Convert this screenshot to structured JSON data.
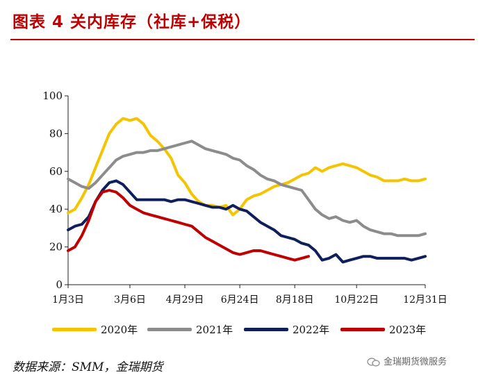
{
  "header": {
    "title": "图表 4  关内库存（社库+保税）"
  },
  "footer": {
    "source": "数据来源：SMM，金瑞期货",
    "watermark": "金瑞期货微服务",
    "watermark_icon": "wechat-icon"
  },
  "chart_data": {
    "type": "line",
    "title": "",
    "xlabel": "",
    "ylabel": "",
    "ylim": [
      0,
      100
    ],
    "yticks": [
      0,
      20,
      40,
      60,
      80,
      100
    ],
    "xticks": [
      "1月3日",
      "3月6日",
      "4月29日",
      "6月24日",
      "8月18日",
      "10月22日",
      "12月31日"
    ],
    "grid": false,
    "legend_position": "bottom",
    "series": [
      {
        "name": "2020年",
        "color": "#f5c400",
        "x": [
          "1月3日",
          "1月10日",
          "1月17日",
          "1月24日",
          "1月31日",
          "2月7日",
          "2月14日",
          "2月21日",
          "2月28日",
          "3月6日",
          "3月13日",
          "3月20日",
          "3月27日",
          "4月3日",
          "4月10日",
          "4月17日",
          "4月24日",
          "5月1日",
          "5月8日",
          "5月15日",
          "5月22日",
          "5月29日",
          "6月5日",
          "6月12日",
          "6月19日",
          "6月26日",
          "7月3日",
          "7月10日",
          "7月17日",
          "7月24日",
          "7月31日",
          "8月7日",
          "8月14日",
          "8月21日",
          "8月28日",
          "9月4日",
          "9月11日",
          "9月18日",
          "9月25日",
          "10月2日",
          "10月9日",
          "10月16日",
          "10月23日",
          "10月30日",
          "11月6日",
          "11月13日",
          "11月20日",
          "11月27日",
          "12月4日",
          "12月11日",
          "12月18日",
          "12月25日",
          "12月31日"
        ],
        "values": [
          38,
          40,
          46,
          53,
          62,
          71,
          80,
          85,
          88,
          87,
          88,
          85,
          79,
          76,
          72,
          67,
          58,
          54,
          48,
          44,
          42,
          42,
          41,
          42,
          37,
          40,
          45,
          47,
          48,
          50,
          52,
          53,
          54,
          56,
          58,
          59,
          62,
          60,
          62,
          63,
          64,
          63,
          62,
          60,
          58,
          57,
          55,
          55,
          55,
          56,
          55,
          55,
          56
        ]
      },
      {
        "name": "2021年",
        "color": "#8c8c8c",
        "x": [
          "1月3日",
          "1月10日",
          "1月17日",
          "1月24日",
          "1月31日",
          "2月7日",
          "2月14日",
          "2月21日",
          "2月28日",
          "3月6日",
          "3月13日",
          "3月20日",
          "3月27日",
          "4月3日",
          "4月10日",
          "4月17日",
          "4月24日",
          "5月1日",
          "5月8日",
          "5月15日",
          "5月22日",
          "5月29日",
          "6月5日",
          "6月12日",
          "6月19日",
          "6月26日",
          "7月3日",
          "7月10日",
          "7月17日",
          "7月24日",
          "7月31日",
          "8月7日",
          "8月14日",
          "8月21日",
          "8月28日",
          "9月4日",
          "9月11日",
          "9月18日",
          "9月25日",
          "10月2日",
          "10月9日",
          "10月16日",
          "10月23日",
          "10月30日",
          "11月6日",
          "11月13日",
          "11月20日",
          "11月27日",
          "12月4日",
          "12月11日",
          "12月18日",
          "12月25日",
          "12月31日"
        ],
        "values": [
          56,
          54,
          52,
          51,
          54,
          58,
          62,
          66,
          68,
          69,
          70,
          70,
          71,
          71,
          72,
          73,
          74,
          75,
          76,
          74,
          72,
          71,
          70,
          69,
          67,
          66,
          63,
          61,
          58,
          56,
          55,
          53,
          52,
          51,
          50,
          45,
          40,
          37,
          35,
          36,
          34,
          33,
          34,
          31,
          29,
          28,
          27,
          27,
          26,
          26,
          26,
          26,
          27
        ]
      },
      {
        "name": "2022年",
        "color": "#0f1f5c",
        "x": [
          "1月3日",
          "1月10日",
          "1月17日",
          "1月24日",
          "1月31日",
          "2月7日",
          "2月14日",
          "2月21日",
          "2月28日",
          "3月6日",
          "3月13日",
          "3月20日",
          "3月27日",
          "4月3日",
          "4月10日",
          "4月17日",
          "4月24日",
          "5月1日",
          "5月8日",
          "5月15日",
          "5月22日",
          "5月29日",
          "6月5日",
          "6月12日",
          "6月19日",
          "6月26日",
          "7月3日",
          "7月10日",
          "7月17日",
          "7月24日",
          "7月31日",
          "8月7日",
          "8月14日",
          "8月21日",
          "8月28日",
          "9月4日",
          "9月11日",
          "9月18日",
          "9月25日",
          "10月2日",
          "10月9日",
          "10月16日",
          "10月23日",
          "10月30日",
          "11月6日",
          "11月13日",
          "11月20日",
          "11月27日",
          "12月4日",
          "12月11日",
          "12月18日",
          "12月25日",
          "12月31日"
        ],
        "values": [
          29,
          31,
          32,
          36,
          44,
          50,
          54,
          55,
          53,
          49,
          45,
          45,
          45,
          45,
          45,
          44,
          45,
          45,
          44,
          43,
          42,
          41,
          41,
          40,
          42,
          40,
          39,
          36,
          33,
          31,
          29,
          26,
          25,
          24,
          22,
          21,
          18,
          13,
          14,
          16,
          12,
          13,
          14,
          15,
          15,
          14,
          14,
          14,
          14,
          14,
          13,
          14,
          15
        ]
      },
      {
        "name": "2023年",
        "color": "#c00000",
        "x": [
          "1月3日",
          "1月10日",
          "1月17日",
          "1月24日",
          "1月31日",
          "2月7日",
          "2月14日",
          "2月21日",
          "2月28日",
          "3月6日",
          "3月13日",
          "3月20日",
          "3月27日",
          "4月3日",
          "4月10日",
          "4月17日",
          "4月24日",
          "5月1日",
          "5月8日",
          "5月15日",
          "5月22日",
          "5月29日",
          "6月5日",
          "6月12日",
          "6月19日",
          "6月26日",
          "7月3日",
          "7月10日",
          "7月17日",
          "7月24日",
          "7月31日",
          "8月7日",
          "8月14日",
          "8月21日",
          "8月28日",
          "9月4日"
        ],
        "values": [
          18,
          20,
          26,
          34,
          44,
          49,
          50,
          49,
          46,
          42,
          40,
          38,
          37,
          36,
          35,
          34,
          33,
          32,
          31,
          28,
          25,
          23,
          21,
          19,
          17,
          16,
          17,
          18,
          18,
          17,
          16,
          15,
          14,
          13,
          14,
          15
        ]
      }
    ]
  }
}
